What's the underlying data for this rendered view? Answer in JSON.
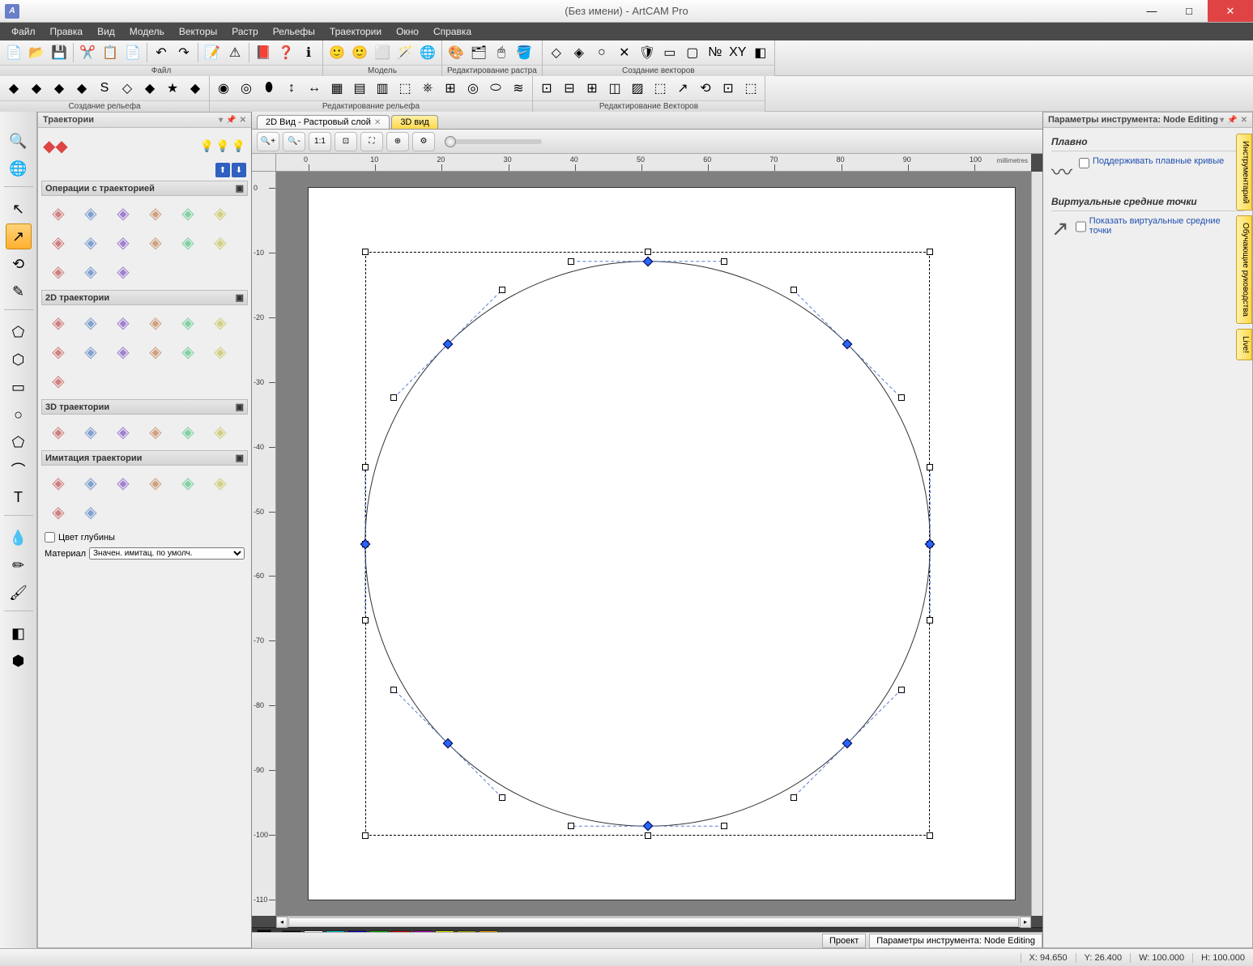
{
  "app": {
    "title": "(Без имени) - ArtCAM Pro",
    "icon_text": "A"
  },
  "menu": [
    "Файл",
    "Правка",
    "Вид",
    "Модель",
    "Векторы",
    "Растр",
    "Рельефы",
    "Траектории",
    "Окно",
    "Справка"
  ],
  "toolbar_row1": {
    "groups": [
      {
        "label": "Файл",
        "icons": [
          "new",
          "open",
          "save",
          "sep",
          "cut",
          "copy",
          "paste",
          "sep",
          "undo",
          "redo",
          "sep",
          "notes",
          "err",
          "sep",
          "book",
          "help",
          "about"
        ]
      },
      {
        "label": "Модель",
        "icons": [
          "face1",
          "face2",
          "grayface",
          "wiz",
          "globe"
        ]
      },
      {
        "label": "Редактирование растра",
        "icons": [
          "palette",
          "layers",
          "pick",
          "flood"
        ]
      },
      {
        "label": "Создание векторов",
        "icons": [
          "shape1",
          "shape2",
          "shape3",
          "x",
          "shield",
          "rect",
          "box",
          "nest",
          "xy",
          "cube"
        ]
      }
    ]
  },
  "toolbar_row2": {
    "groups": [
      {
        "label": "Создание рельефа",
        "icons": [
          "r1",
          "r2",
          "r3",
          "r4",
          "r5",
          "r6",
          "r7",
          "r8",
          "r9"
        ]
      },
      {
        "label": "Редактирование рельефа",
        "icons": [
          "e1",
          "e2",
          "e3",
          "e4",
          "e5",
          "e6",
          "e7",
          "e8",
          "e9",
          "e10",
          "e11",
          "e12",
          "e13",
          "e14"
        ]
      },
      {
        "label": "Редактирование Векторов",
        "icons": [
          "v1",
          "v2",
          "v3",
          "v4",
          "v5",
          "v6",
          "v7",
          "v8",
          "v9",
          "vsel"
        ]
      }
    ]
  },
  "left_tools": [
    "zoom",
    "globe",
    "sep",
    "arrow",
    "nodeedit",
    "rotate",
    "pen",
    "sep",
    "irregular",
    "poly",
    "rect",
    "circle",
    "pentagon",
    "arc",
    "text",
    "sep",
    "drop",
    "pen2",
    "brush",
    "sep",
    "eraser",
    "stamp"
  ],
  "left_active_index": 4,
  "traj_panel": {
    "title": "Траектории",
    "top_icons": [
      "bulb1",
      "bulb2",
      "bulb3"
    ],
    "arrow_icons": [
      "up",
      "down"
    ],
    "sections": [
      {
        "title": "Операции с траекторией",
        "count": 15
      },
      {
        "title": "2D траектории",
        "count": 13
      },
      {
        "title": "3D траектории",
        "count": 6
      },
      {
        "title": "Имитация траектории",
        "count": 8
      }
    ],
    "checkbox_label": "Цвет глубины",
    "material_label": "Материал",
    "material_value": "Значен. имитац. по умолч."
  },
  "view_tabs": [
    {
      "label": "2D Вид - Растровый слой",
      "closeable": true,
      "active": true,
      "style": "normal"
    },
    {
      "label": "3D вид",
      "closeable": false,
      "active": false,
      "style": "yellow"
    }
  ],
  "view_toolbar_icons": [
    "zoomin",
    "zoomout",
    "zoom1",
    "zoomwin",
    "zoomfit",
    "zoomall",
    "gear"
  ],
  "ruler": {
    "units": "millimetres",
    "h_ticks": [
      0,
      10,
      20,
      30,
      40,
      50,
      60,
      70,
      80,
      90,
      100
    ],
    "v_ticks": [
      0,
      -10,
      -20,
      -30,
      -40,
      -50,
      -60,
      -70,
      -80,
      -90,
      -100,
      -110
    ]
  },
  "canvas": {
    "artboard": {
      "bg": "#ffffff"
    },
    "selection_rect": {
      "left_pct": 8,
      "top_pct": 9,
      "width_pct": 80,
      "height_pct": 82
    },
    "circle": {
      "cx_pct": 48,
      "cy_pct": 50,
      "r_pct": 40,
      "stroke": "#333",
      "dash": false
    },
    "bezier_dash_color": "#5b7bd6",
    "blue_nodes_deg": [
      0,
      45,
      90,
      135,
      180,
      225,
      270,
      315
    ],
    "white_nodes_deg": [
      22.5,
      67.5,
      112.5,
      157.5,
      202.5,
      247.5,
      292.5,
      337.5
    ],
    "sel_handles": true
  },
  "color_bar": [
    "#000000",
    "#000000",
    "#ffffff",
    "#00c0c0",
    "#0000c0",
    "#00b000",
    "#d00000",
    "#b000b0",
    "#e6e600",
    "#a0a000",
    "#e0a000"
  ],
  "right_panel": {
    "title": "Параметры инструмента: Node Editing",
    "sections": [
      {
        "heading": "Плавно",
        "checkbox": "Поддерживать плавные кривые",
        "icon": "curve"
      },
      {
        "heading": "Виртуальные средние точки",
        "checkbox": "Показать виртуальные средние точки",
        "icon": "diag"
      }
    ]
  },
  "side_tabs": [
    "Инструментарий",
    "Обучающие руководства",
    "Live!"
  ],
  "status": {
    "tabs": [
      "Проект",
      "Параметры инструмента: Node Editing"
    ],
    "x": "X: 94.650",
    "y": "Y: 26.400",
    "w": "W: 100.000",
    "h": "H: 100.000"
  },
  "colors": {
    "accent": "#ffb030",
    "titlebar_text": "#555"
  }
}
